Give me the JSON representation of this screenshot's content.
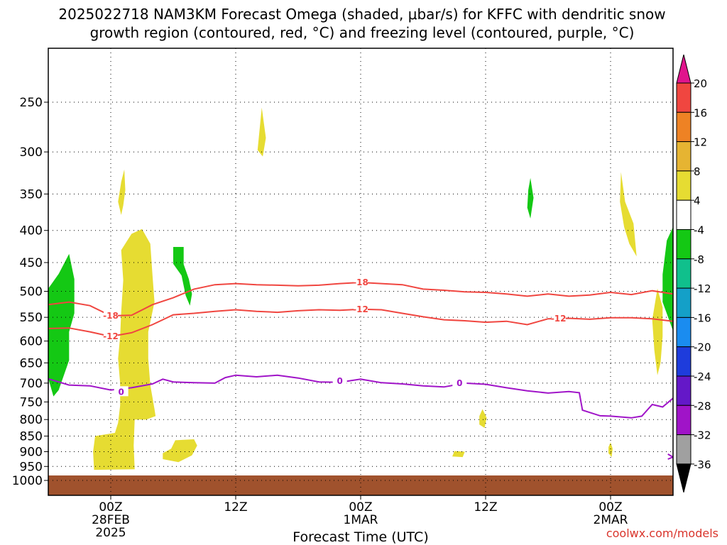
{
  "title": {
    "line1": "2025022718 NAM3KM Forecast Omega (shaded, μbar/s) for KFFC with dendritic snow",
    "line2": "growth region (contoured, red, °C) and freezing level (contoured, purple, °C)"
  },
  "xlabel": "Forecast Time (UTC)",
  "credit": "coolwx.com/models",
  "chart_data": {
    "type": "time-height contour",
    "y_axis": {
      "unit": "hPa",
      "ticks": [
        250,
        300,
        350,
        400,
        450,
        500,
        550,
        600,
        650,
        700,
        750,
        800,
        850,
        900,
        950,
        1000
      ],
      "range": [
        1020,
        200
      ],
      "grid": "dotted"
    },
    "x_axis": {
      "unit": "forecast hour",
      "range": [
        -6,
        54
      ],
      "ticks": [
        {
          "hour": 0,
          "line1": "00Z",
          "line2": "28FEB",
          "line3": "2025"
        },
        {
          "hour": 12,
          "line1": "12Z",
          "line2": "",
          "line3": ""
        },
        {
          "hour": 24,
          "line1": "00Z",
          "line2": "1MAR",
          "line3": ""
        },
        {
          "hour": 36,
          "line1": "12Z",
          "line2": "",
          "line3": ""
        },
        {
          "hour": 48,
          "line1": "00Z",
          "line2": "2MAR",
          "line3": ""
        }
      ],
      "grid": "dotted"
    },
    "colorbar": {
      "levels": [
        20,
        16,
        12,
        8,
        4,
        -4,
        -8,
        -12,
        -16,
        -20,
        -24,
        -28,
        -32,
        -36
      ],
      "colors": {
        "above_20": "#e0148c",
        "16_20": "#f04640",
        "12_16": "#ee8224",
        "8_12": "#e6b432",
        "4_8": "#e6dc32",
        "-4_4": "#ffffff",
        "-8_-4": "#14c814",
        "-12_-8": "#10c08c",
        "-16_-12": "#14a0c8",
        "-20_-16": "#1a8cf0",
        "-24_-20": "#1e3cdc",
        "-28_-24": "#6418c8",
        "-32_-28": "#a014c8",
        "-36_-32": "#a0a0a0",
        "below_-36": "#000000"
      }
    },
    "contours": [
      {
        "label": "-18",
        "color": "#f04640",
        "points": [
          [
            -6,
            525
          ],
          [
            -4,
            520
          ],
          [
            -2,
            527
          ],
          [
            0,
            547
          ],
          [
            2,
            546
          ],
          [
            4,
            525
          ],
          [
            6,
            512
          ],
          [
            8,
            496
          ],
          [
            10,
            488
          ],
          [
            12,
            486
          ],
          [
            14,
            488
          ],
          [
            16,
            489
          ],
          [
            18,
            490
          ],
          [
            20,
            489
          ],
          [
            22,
            486
          ],
          [
            24,
            484
          ],
          [
            26,
            486
          ],
          [
            28,
            488
          ],
          [
            30,
            496
          ],
          [
            32,
            498
          ],
          [
            34,
            501
          ],
          [
            36,
            502
          ],
          [
            38,
            505
          ],
          [
            40,
            509
          ],
          [
            42,
            505
          ],
          [
            44,
            509
          ],
          [
            46,
            507
          ],
          [
            48,
            502
          ],
          [
            50,
            506
          ],
          [
            52,
            499
          ],
          [
            54,
            505
          ]
        ],
        "label_positions": [
          [
            0,
            547
          ],
          [
            24,
            484
          ]
        ]
      },
      {
        "label": "-12",
        "color": "#f04640",
        "points": [
          [
            -6,
            573
          ],
          [
            -4,
            572
          ],
          [
            -2,
            580
          ],
          [
            0,
            590
          ],
          [
            2,
            582
          ],
          [
            4,
            565
          ],
          [
            6,
            545
          ],
          [
            8,
            542
          ],
          [
            10,
            538
          ],
          [
            12,
            535
          ],
          [
            14,
            538
          ],
          [
            16,
            540
          ],
          [
            18,
            537
          ],
          [
            20,
            535
          ],
          [
            22,
            536
          ],
          [
            24,
            534
          ],
          [
            26,
            535
          ],
          [
            28,
            542
          ],
          [
            30,
            549
          ],
          [
            32,
            555
          ],
          [
            34,
            557
          ],
          [
            36,
            560
          ],
          [
            38,
            558
          ],
          [
            40,
            565
          ],
          [
            42,
            553
          ],
          [
            44,
            552
          ],
          [
            46,
            554
          ],
          [
            48,
            551
          ],
          [
            50,
            551
          ],
          [
            52,
            553
          ],
          [
            54,
            558
          ]
        ],
        "label_positions": [
          [
            0,
            590
          ],
          [
            24,
            534
          ],
          [
            43,
            553
          ]
        ]
      },
      {
        "label": "0",
        "color": "#a014c8",
        "points": [
          [
            -6,
            689
          ],
          [
            -4,
            705
          ],
          [
            -2,
            707
          ],
          [
            0,
            718
          ],
          [
            2,
            712
          ],
          [
            4,
            702
          ],
          [
            5,
            690
          ],
          [
            6,
            697
          ],
          [
            8,
            699
          ],
          [
            10,
            700
          ],
          [
            11,
            686
          ],
          [
            12,
            680
          ],
          [
            14,
            684
          ],
          [
            16,
            680
          ],
          [
            18,
            687
          ],
          [
            20,
            697
          ],
          [
            22,
            698
          ],
          [
            24,
            690
          ],
          [
            26,
            699
          ],
          [
            28,
            702
          ],
          [
            30,
            707
          ],
          [
            32,
            710
          ],
          [
            34,
            700
          ],
          [
            36,
            703
          ],
          [
            38,
            712
          ],
          [
            40,
            720
          ],
          [
            42,
            726
          ],
          [
            44,
            722
          ],
          [
            45,
            725
          ],
          [
            45.3,
            773
          ],
          [
            47,
            789
          ],
          [
            48,
            790
          ],
          [
            50,
            795
          ],
          [
            51,
            790
          ],
          [
            52,
            757
          ],
          [
            53,
            764
          ],
          [
            54,
            740
          ]
        ],
        "label_positions": [
          [
            1,
            723
          ],
          [
            22,
            695
          ],
          [
            33.5,
            700
          ]
        ]
      },
      {
        "label": "0",
        "color": "#a014c8",
        "points": [
          [
            53.5,
            908
          ],
          [
            54,
            918
          ],
          [
            53.5,
            925
          ]
        ],
        "label_positions": []
      }
    ],
    "shaded_regions": [
      {
        "category": "-8_-4",
        "note": "green patch left",
        "points": [
          [
            -6,
            495
          ],
          [
            -5,
            469
          ],
          [
            -4,
            436
          ],
          [
            -3.5,
            478
          ],
          [
            -3.5,
            542
          ],
          [
            -4,
            580
          ],
          [
            -4,
            644
          ],
          [
            -5,
            718
          ],
          [
            -5.5,
            735
          ],
          [
            -6,
            688
          ]
        ]
      },
      {
        "category": "4_8",
        "note": "main yellow column",
        "points": [
          [
            1,
            430
          ],
          [
            2,
            405
          ],
          [
            3,
            398
          ],
          [
            3.8,
            420
          ],
          [
            4,
            470
          ],
          [
            4.2,
            520
          ],
          [
            3.6,
            580
          ],
          [
            3.6,
            640
          ],
          [
            3.8,
            705
          ],
          [
            4.2,
            770
          ],
          [
            4.3,
            790
          ],
          [
            3.4,
            800
          ],
          [
            2.3,
            800
          ],
          [
            2.2,
            880
          ],
          [
            2.3,
            960
          ],
          [
            -1.6,
            962
          ],
          [
            -1.7,
            900
          ],
          [
            -1.5,
            850
          ],
          [
            0.4,
            840
          ],
          [
            0.7,
            810
          ],
          [
            0.9,
            760
          ],
          [
            0.9,
            700
          ],
          [
            0.7,
            640
          ],
          [
            0.9,
            590
          ],
          [
            1,
            540
          ],
          [
            1.2,
            480
          ]
        ]
      },
      {
        "category": "4_8",
        "note": "yellow sliver 350hPa",
        "points": [
          [
            1,
            335
          ],
          [
            1.3,
            320
          ],
          [
            1.4,
            345
          ],
          [
            1.2,
            365
          ],
          [
            1,
            378
          ],
          [
            0.7,
            360
          ]
        ]
      },
      {
        "category": "-8_-4",
        "note": "green blob 450",
        "points": [
          [
            6,
            425
          ],
          [
            7,
            425
          ],
          [
            7,
            453
          ],
          [
            7.5,
            478
          ],
          [
            7.8,
            505
          ],
          [
            7.6,
            527
          ],
          [
            7.2,
            508
          ],
          [
            6.8,
            472
          ],
          [
            6,
            452
          ]
        ]
      },
      {
        "category": "4_8",
        "note": "yellow blob 900",
        "points": [
          [
            6.2,
            863
          ],
          [
            8,
            860
          ],
          [
            8.3,
            880
          ],
          [
            7.8,
            912
          ],
          [
            6.5,
            935
          ],
          [
            5,
            925
          ],
          [
            5,
            905
          ],
          [
            5.8,
            890
          ]
        ]
      },
      {
        "category": "4_8",
        "note": "yellow sliver 280",
        "points": [
          [
            14.5,
            255
          ],
          [
            14.9,
            285
          ],
          [
            14.6,
            305
          ],
          [
            14.1,
            298
          ],
          [
            14.3,
            276
          ]
        ]
      },
      {
        "category": "4_8",
        "note": "small blob 910",
        "points": [
          [
            33,
            898
          ],
          [
            34,
            900
          ],
          [
            33.8,
            918
          ],
          [
            32.8,
            916
          ]
        ]
      },
      {
        "category": "4_8",
        "note": "blob 800",
        "points": [
          [
            35.7,
            770
          ],
          [
            36.1,
            795
          ],
          [
            35.9,
            825
          ],
          [
            35.4,
            815
          ],
          [
            35.4,
            790
          ]
        ]
      },
      {
        "category": "-8_-4",
        "note": "green sliver 350",
        "points": [
          [
            40.3,
            330
          ],
          [
            40.6,
            355
          ],
          [
            40.3,
            383
          ],
          [
            40,
            368
          ],
          [
            40.1,
            345
          ]
        ]
      },
      {
        "category": "4_8",
        "note": "yellow sliver 350-450",
        "points": [
          [
            49,
            323
          ],
          [
            49.4,
            360
          ],
          [
            50.2,
            390
          ],
          [
            50.5,
            440
          ],
          [
            49.8,
            420
          ],
          [
            49.3,
            395
          ],
          [
            48.9,
            360
          ]
        ]
      },
      {
        "category": "4_8",
        "note": "yellow sliver 550",
        "points": [
          [
            52.5,
            495
          ],
          [
            53,
            530
          ],
          [
            53,
            590
          ],
          [
            52.8,
            650
          ],
          [
            52.5,
            680
          ],
          [
            52.2,
            620
          ],
          [
            52,
            555
          ]
        ]
      },
      {
        "category": "4_8",
        "note": "small blob 880",
        "points": [
          [
            48,
            870
          ],
          [
            48.2,
            890
          ],
          [
            48.1,
            918
          ],
          [
            47.8,
            905
          ],
          [
            47.8,
            885
          ]
        ]
      },
      {
        "category": "-8_-4",
        "note": "green right edge",
        "points": [
          [
            54,
            395
          ],
          [
            53.4,
            415
          ],
          [
            53,
            470
          ],
          [
            53,
            520
          ],
          [
            53.7,
            560
          ],
          [
            54,
            578
          ]
        ]
      }
    ],
    "terrain": {
      "color": "#a0522d",
      "top_hPa": 982
    }
  }
}
